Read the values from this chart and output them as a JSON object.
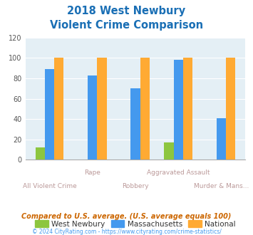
{
  "title_line1": "2018 West Newbury",
  "title_line2": "Violent Crime Comparison",
  "categories": [
    "All Violent Crime",
    "Rape",
    "Robbery",
    "Aggravated Assault",
    "Murder & Mans..."
  ],
  "west_newbury": [
    12,
    0,
    0,
    17,
    0
  ],
  "massachusetts": [
    89,
    83,
    70,
    98,
    41
  ],
  "national": [
    100,
    100,
    100,
    100,
    100
  ],
  "color_wn": "#8dc63f",
  "color_ma": "#4499ee",
  "color_nat": "#ffaa33",
  "bg_color": "#e4eff5",
  "title_color": "#1a6fb5",
  "xlabel_color": "#bb9999",
  "ylim": [
    0,
    120
  ],
  "yticks": [
    0,
    20,
    40,
    60,
    80,
    100,
    120
  ],
  "footnote1": "Compared to U.S. average. (U.S. average equals 100)",
  "footnote2": "© 2024 CityRating.com - https://www.cityrating.com/crime-statistics/",
  "legend_labels": [
    "West Newbury",
    "Massachusetts",
    "National"
  ],
  "footnote1_color": "#cc6600",
  "footnote2_color": "#4499ee"
}
